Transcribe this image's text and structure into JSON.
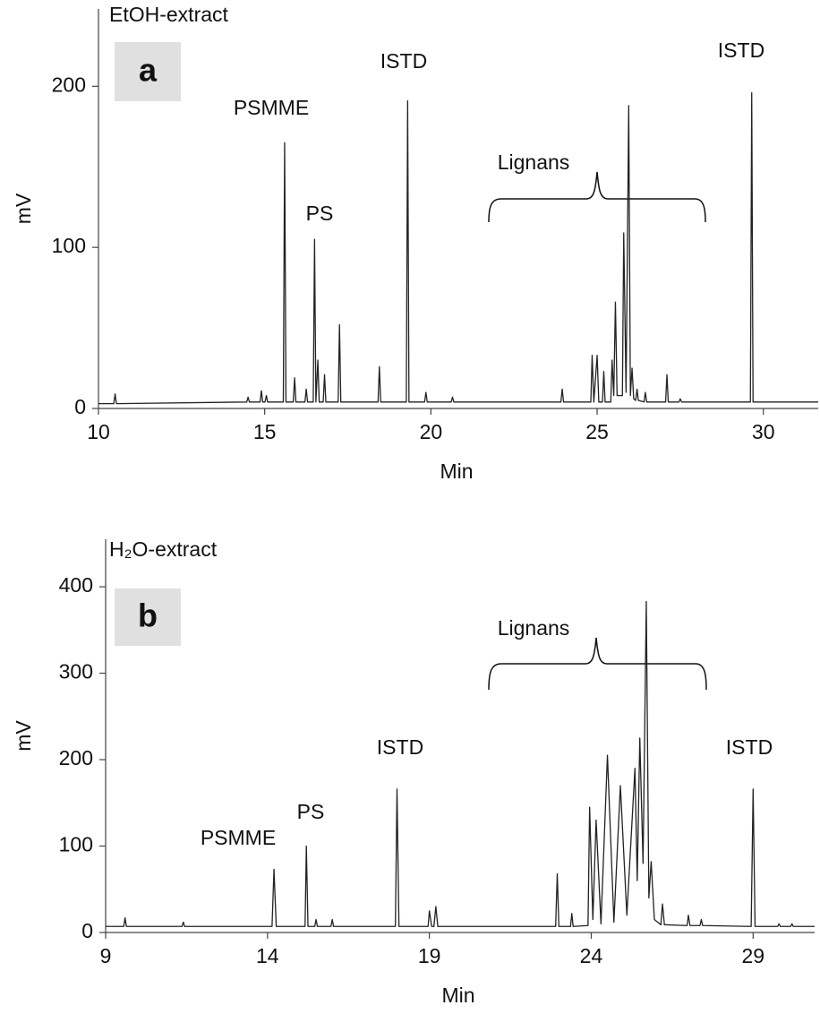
{
  "chart_data": [
    {
      "type": "line",
      "title": "EtOH-extract",
      "panel_label": "a",
      "xlabel": "Min",
      "ylabel": "mV",
      "color": "#222222",
      "annotations": [
        "PSMME",
        "PS",
        "ISTD",
        "ISTD",
        "Lignans"
      ],
      "xlim": [
        10,
        31.65
      ],
      "ylim": [
        0,
        248
      ],
      "xticks": [
        10,
        15,
        20,
        25,
        30
      ],
      "yticks": [
        0,
        100,
        200
      ],
      "x": [
        10,
        10.46,
        10.5,
        10.54,
        14.46,
        14.5,
        14.54,
        14.86,
        14.9,
        14.94,
        15.01,
        15.05,
        15.09,
        15.56,
        15.6,
        15.64,
        15.86,
        15.9,
        15.94,
        16.21,
        16.25,
        16.29,
        16.46,
        16.5,
        16.54,
        16.6,
        16.64,
        16.76,
        16.8,
        16.84,
        17.21,
        17.25,
        17.29,
        18.41,
        18.45,
        18.49,
        19.26,
        19.3,
        19.34,
        19.81,
        19.85,
        19.89,
        20.61,
        20.65,
        20.69,
        23.91,
        23.95,
        23.99,
        24.81,
        24.85,
        24.9,
        25.0,
        25.05,
        25.16,
        25.2,
        25.24,
        25.41,
        25.45,
        25.5,
        25.55,
        25.6,
        25.76,
        25.8,
        25.87,
        25.95,
        26.0,
        26.05,
        26.1,
        26.16,
        26.2,
        26.24,
        26.41,
        26.45,
        26.49,
        27.06,
        27.1,
        27.14,
        27.46,
        27.5,
        27.54,
        29.61,
        29.65,
        29.69,
        31.65
      ],
      "values": [
        3,
        3,
        9,
        3,
        4,
        7,
        4,
        4,
        11,
        4,
        4,
        8,
        4,
        4,
        165,
        4,
        4,
        19,
        4,
        4,
        12,
        4,
        4,
        105,
        4,
        30,
        4,
        4,
        21,
        4,
        4,
        52,
        4,
        4,
        26,
        4,
        4,
        191,
        4,
        4,
        10,
        4,
        4,
        7,
        4,
        4,
        12,
        4,
        4,
        33,
        4,
        33,
        4,
        4,
        23,
        4,
        4,
        30,
        8,
        66,
        8,
        8,
        109,
        10,
        188,
        8,
        25,
        6,
        5,
        12,
        5,
        4,
        10,
        4,
        4,
        21,
        4,
        4,
        6,
        4,
        4,
        196,
        4,
        4
      ]
    },
    {
      "type": "line",
      "title": "H₂O-extract",
      "panel_label": "b",
      "xlabel": "Min",
      "ylabel": "mV",
      "color": "#222222",
      "annotations": [
        "PSMME",
        "PS",
        "ISTD",
        "ISTD",
        "Lignans"
      ],
      "xlim": [
        9,
        30.9
      ],
      "ylim": [
        0,
        455
      ],
      "xticks": [
        9,
        14,
        19,
        24,
        29
      ],
      "yticks": [
        0,
        100,
        200,
        300,
        400
      ],
      "x": [
        9,
        9.56,
        9.6,
        9.64,
        11.36,
        11.4,
        11.44,
        14.14,
        14.2,
        14.27,
        15.16,
        15.2,
        15.25,
        15.46,
        15.5,
        15.54,
        15.96,
        16.0,
        16.04,
        17.95,
        18.0,
        18.06,
        18.96,
        19.0,
        19.07,
        19.14,
        19.2,
        19.26,
        22.9,
        22.95,
        23.0,
        23.36,
        23.4,
        23.44,
        23.9,
        23.95,
        24.05,
        24.15,
        24.3,
        24.5,
        24.7,
        24.9,
        25.1,
        25.35,
        25.42,
        25.5,
        25.6,
        25.7,
        25.78,
        25.85,
        25.95,
        26.15,
        26.2,
        26.26,
        26.96,
        27.0,
        27.05,
        27.36,
        27.4,
        27.44,
        28.94,
        29.0,
        29.06,
        29.76,
        29.8,
        29.84,
        30.16,
        30.2,
        30.24,
        30.9
      ],
      "values": [
        7,
        7,
        17,
        7,
        7,
        12,
        7,
        7,
        73,
        7,
        7,
        100,
        7,
        7,
        15,
        7,
        7,
        15,
        7,
        7,
        166,
        7,
        7,
        25,
        7,
        7,
        30,
        7,
        7,
        68,
        7,
        7,
        22,
        7,
        8,
        145,
        15,
        130,
        10,
        205,
        12,
        170,
        20,
        190,
        60,
        225,
        80,
        383,
        40,
        82,
        15,
        9,
        33,
        9,
        8,
        20,
        8,
        8,
        15,
        8,
        7,
        166,
        7,
        7,
        10,
        7,
        7,
        10,
        7,
        7
      ]
    }
  ]
}
